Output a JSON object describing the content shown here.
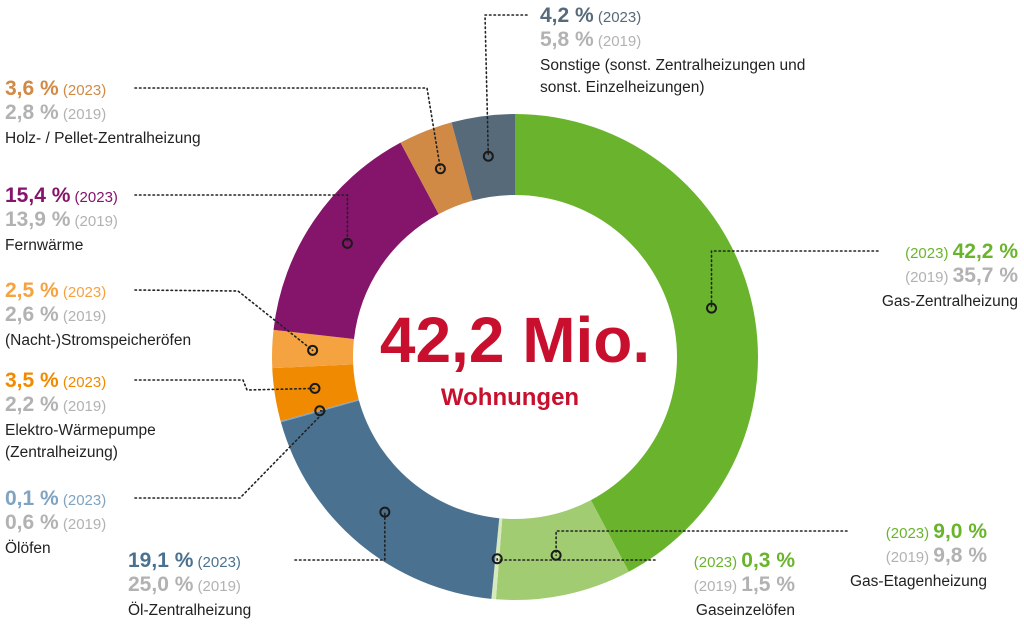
{
  "chart_data": {
    "type": "donut",
    "center": {
      "total": "42,2 Mio.",
      "unit": "Wohnungen"
    },
    "current_year_label": "(2023)",
    "previous_year_label": "(2019)",
    "muted_color": "#b2b2b2",
    "segments": [
      {
        "label": "Gas-Zentralheizung",
        "label_lines": [
          "Gas-Zentralheizung"
        ],
        "value_2023": 42.2,
        "value_2023_text": "42,2 %",
        "value_2019": 35.7,
        "value_2019_text": "35,7 %",
        "color": "#6ab42d",
        "text_color": "#6ab42d"
      },
      {
        "label": "Gas-Etagenheizung",
        "label_lines": [
          "Gas-Etagenheizung"
        ],
        "value_2023": 9.0,
        "value_2023_text": "9,0 %",
        "value_2019": 9.8,
        "value_2019_text": "9,8 %",
        "color": "#a2cc72",
        "text_color": "#6ab42d"
      },
      {
        "label": "Gaseinzelöfen",
        "label_lines": [
          "Gaseinzelöfen"
        ],
        "value_2023": 0.3,
        "value_2023_text": "0,3 %",
        "value_2019": 1.5,
        "value_2019_text": "1,5 %",
        "color": "#d7e9bf",
        "text_color": "#6ab42d"
      },
      {
        "label": "Öl-Zentralheizung",
        "label_lines": [
          "Öl-Zentralheizung"
        ],
        "value_2023": 19.1,
        "value_2023_text": "19,1 %",
        "value_2019": 25.0,
        "value_2019_text": "25,0 %",
        "color": "#4a7290",
        "text_color": "#4a7290"
      },
      {
        "label": "Ölöfen",
        "label_lines": [
          "Ölöfen"
        ],
        "value_2023": 0.1,
        "value_2023_text": "0,1 %",
        "value_2019": 0.6,
        "value_2019_text": "0,6 %",
        "color": "#7fa3c0",
        "text_color": "#7fa3c0"
      },
      {
        "label": "Elektro-Wärmepumpe (Zentralheizung)",
        "label_lines": [
          "Elektro-Wärmepumpe",
          "(Zentralheizung)"
        ],
        "value_2023": 3.5,
        "value_2023_text": "3,5 %",
        "value_2019": 2.2,
        "value_2019_text": "2,2 %",
        "color": "#f08a00",
        "text_color": "#f08a00"
      },
      {
        "label": "(Nacht-)Stromspeicheröfen",
        "label_lines": [
          "(Nacht-)Stromspeicheröfen"
        ],
        "value_2023": 2.5,
        "value_2023_text": "2,5 %",
        "value_2019": 2.6,
        "value_2019_text": "2,6 %",
        "color": "#f5a340",
        "text_color": "#f5a340"
      },
      {
        "label": "Fernwärme",
        "label_lines": [
          "Fernwärme"
        ],
        "value_2023": 15.4,
        "value_2023_text": "15,4 %",
        "value_2019": 13.9,
        "value_2019_text": "13,9 %",
        "color": "#85146b",
        "text_color": "#85146b"
      },
      {
        "label": "Holz- / Pellet-Zentralheizung",
        "label_lines": [
          "Holz- / Pellet-Zentralheizung"
        ],
        "value_2023": 3.6,
        "value_2023_text": "3,6 %",
        "value_2019": 2.8,
        "value_2019_text": "2,8 %",
        "color": "#d08a45",
        "text_color": "#d08a45"
      },
      {
        "label": "Sonstige (sonst. Zentralheizungen und sonst. Einzelheizungen)",
        "label_lines": [
          "Sonstige (sonst. Zentralheizungen und",
          "sonst. Einzelheizungen)"
        ],
        "value_2023": 4.2,
        "value_2023_text": "4,2 %",
        "value_2019": 5.8,
        "value_2019_text": "5,8 %",
        "color": "#566a7a",
        "text_color": "#566a7a"
      }
    ]
  }
}
